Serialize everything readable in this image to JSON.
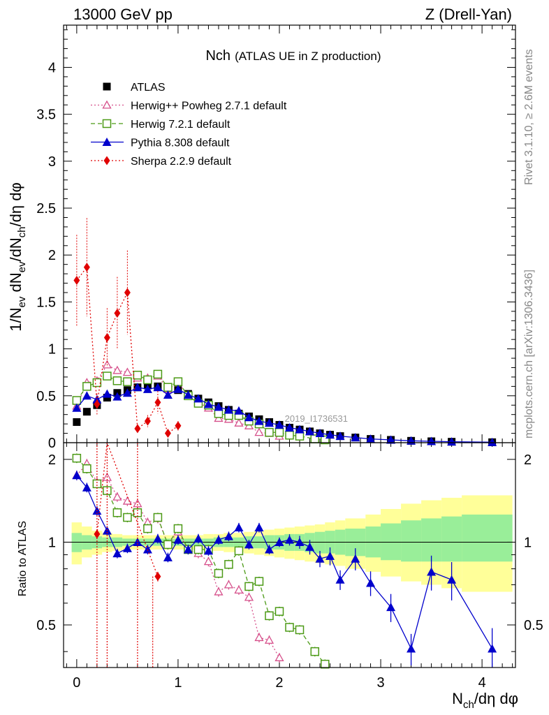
{
  "header": {
    "left": "13000 GeV pp",
    "right": "Z (Drell-Yan)"
  },
  "plot_title": {
    "main": "Nch",
    "sub": "(ATLAS UE in Z production)"
  },
  "side_labels": {
    "rivet": "Rivet 3.1.10, ≥ 2.6M events",
    "mcplots": "mcplots.cern.ch [arXiv:1306.3436]"
  },
  "watermark": "2019_I1736531",
  "axes": {
    "xlabel": {
      "base": "N",
      "sub": "ch",
      "rest": "/dη dφ"
    },
    "ylabel_top": {
      "p1": "1/N",
      "s1": "ev",
      "p2": " dN",
      "s2": "ev",
      "p3": "/dN",
      "s3": "ch",
      "p4": "/dη dφ"
    },
    "ylabel_bottom": "Ratio to ATLAS",
    "x_ticks": [
      "0",
      "1",
      "2",
      "3",
      "4"
    ],
    "y_ticks_top": [
      "0",
      "0.5",
      "1",
      "1.5",
      "2",
      "2.5",
      "3",
      "3.5",
      "4"
    ],
    "y_ticks_bottom": [
      "0.5",
      "1",
      "2"
    ]
  },
  "legend": [
    {
      "label": "ATLAS",
      "color": "#000000",
      "marker": "square-filled"
    },
    {
      "label": "Herwig++ Powheg 2.7.1 default",
      "color": "#d6508b",
      "marker": "triangle-open"
    },
    {
      "label": "Herwig 7.2.1 default",
      "color": "#4c9a16",
      "marker": "square-open"
    },
    {
      "label": "Pythia 8.308 default",
      "color": "#0000cc",
      "marker": "triangle-filled"
    },
    {
      "label": "Sherpa 2.2.9 default",
      "color": "#e00000",
      "marker": "diamond-filled"
    }
  ],
  "chart_data": {
    "type": "scatter",
    "title": "Nch (ATLAS UE in Z production)",
    "xlabel": "N_ch/dη dφ",
    "ylabel": "1/N_ev dN_ev/dN_ch/dη dφ",
    "xlim": [
      -0.13,
      4.33
    ],
    "ylim_top": [
      0,
      4.45
    ],
    "ylim_ratio": [
      0.35,
      2.3
    ],
    "ratio_scale": "log",
    "series": [
      {
        "name": "ATLAS",
        "x": [
          0,
          0.1,
          0.2,
          0.3,
          0.4,
          0.5,
          0.6,
          0.7,
          0.8,
          0.9,
          1.0,
          1.1,
          1.2,
          1.3,
          1.4,
          1.5,
          1.6,
          1.7,
          1.8,
          1.9,
          2.0,
          2.1,
          2.2,
          2.3,
          2.4,
          2.5,
          2.6,
          2.75,
          2.9,
          3.1,
          3.3,
          3.5,
          3.7,
          4.1
        ],
        "y": [
          0.22,
          0.33,
          0.4,
          0.48,
          0.53,
          0.56,
          0.59,
          0.61,
          0.6,
          0.59,
          0.56,
          0.52,
          0.47,
          0.43,
          0.39,
          0.35,
          0.31,
          0.28,
          0.25,
          0.22,
          0.19,
          0.16,
          0.14,
          0.12,
          0.1,
          0.085,
          0.07,
          0.055,
          0.04,
          0.03,
          0.02,
          0.015,
          0.01,
          0.005
        ]
      },
      {
        "name": "Herwig++ Powheg 2.7.1 default",
        "x": [
          0,
          0.1,
          0.2,
          0.3,
          0.4,
          0.5,
          0.6,
          0.7,
          0.8,
          0.9,
          1.0,
          1.1,
          1.2,
          1.3,
          1.4,
          1.5,
          1.6,
          1.7,
          1.8,
          1.9,
          2.0
        ],
        "y": [
          0.39,
          0.64,
          0.66,
          0.83,
          0.77,
          0.75,
          0.69,
          0.69,
          0.71,
          0.57,
          0.64,
          0.5,
          0.43,
          0.37,
          0.26,
          0.25,
          0.21,
          0.18,
          0.11,
          0.1,
          0.07
        ],
        "ratio": [
          1.75,
          1.93,
          1.65,
          1.72,
          1.46,
          1.41,
          1.38,
          1.18,
          1.22,
          0.98,
          1.09,
          0.94,
          0.91,
          0.85,
          0.66,
          0.7,
          0.67,
          0.63,
          0.45,
          0.44,
          0.38
        ]
      },
      {
        "name": "Herwig 7.2.1 default",
        "x": [
          0,
          0.1,
          0.2,
          0.3,
          0.4,
          0.5,
          0.6,
          0.7,
          0.8,
          0.9,
          1.0,
          1.1,
          1.2,
          1.3,
          1.4,
          1.5,
          1.6,
          1.7,
          1.8,
          1.9,
          2.0,
          2.1,
          2.2,
          2.35,
          2.45
        ],
        "y": [
          0.45,
          0.6,
          0.64,
          0.71,
          0.66,
          0.65,
          0.72,
          0.67,
          0.73,
          0.59,
          0.65,
          0.5,
          0.42,
          0.4,
          0.31,
          0.29,
          0.29,
          0.23,
          0.2,
          0.11,
          0.11,
          0.08,
          0.07,
          0.04,
          0.03
        ],
        "ratio": [
          2.02,
          1.85,
          1.63,
          1.54,
          1.28,
          1.23,
          1.28,
          1.12,
          1.23,
          0.98,
          1.12,
          0.94,
          0.94,
          0.94,
          0.77,
          0.83,
          0.93,
          0.69,
          0.72,
          0.54,
          0.56,
          0.49,
          0.48,
          0.4,
          0.36
        ]
      },
      {
        "name": "Pythia 8.308 default",
        "x": [
          0,
          0.1,
          0.2,
          0.3,
          0.4,
          0.5,
          0.6,
          0.7,
          0.8,
          0.9,
          1.0,
          1.1,
          1.2,
          1.3,
          1.4,
          1.5,
          1.6,
          1.7,
          1.8,
          1.9,
          2.0,
          2.1,
          2.2,
          2.3,
          2.4,
          2.5,
          2.6,
          2.75,
          2.9,
          3.1,
          3.3,
          3.5,
          3.7,
          4.1
        ],
        "y": [
          0.37,
          0.5,
          0.46,
          0.52,
          0.49,
          0.53,
          0.59,
          0.57,
          0.59,
          0.51,
          0.57,
          0.51,
          0.47,
          0.41,
          0.38,
          0.35,
          0.34,
          0.27,
          0.23,
          0.21,
          0.19,
          0.16,
          0.14,
          0.12,
          0.1,
          0.085,
          0.07,
          0.055,
          0.04,
          0.03,
          0.02,
          0.015,
          0.01,
          0.005
        ],
        "ratio": [
          1.75,
          1.58,
          1.3,
          1.1,
          0.91,
          0.95,
          1.0,
          0.94,
          1.03,
          0.88,
          1.02,
          0.94,
          1.03,
          0.93,
          1.02,
          1.05,
          1.13,
          0.98,
          1.13,
          0.94,
          1.0,
          1.02,
          1.0,
          0.96,
          0.87,
          0.89,
          0.73,
          0.87,
          0.71,
          0.58,
          0.41,
          0.78,
          0.73,
          0.41
        ]
      },
      {
        "name": "Sherpa 2.2.9 default",
        "x": [
          0,
          0.1,
          0.2,
          0.3,
          0.4,
          0.5,
          0.6,
          0.7,
          0.8,
          0.9,
          1.0
        ],
        "y": [
          1.73,
          1.87,
          0.41,
          1.12,
          1.38,
          1.6,
          0.15,
          0.23,
          0.43,
          0.1,
          0.18
        ],
        "ratio": [
          null,
          null,
          1.07,
          2.35,
          null,
          null,
          null,
          null,
          0.75,
          null,
          null
        ]
      }
    ],
    "uncertainty_bands": {
      "x_edges": [
        -0.05,
        0.05,
        0.15,
        0.25,
        0.35,
        0.45,
        0.55,
        0.65,
        0.75,
        0.85,
        0.95,
        1.05,
        1.15,
        1.25,
        1.35,
        1.45,
        1.55,
        1.65,
        1.75,
        1.85,
        1.95,
        2.05,
        2.15,
        2.25,
        2.35,
        2.45,
        2.55,
        2.65,
        2.85,
        3.0,
        3.2,
        3.4,
        3.6,
        3.8,
        4.3
      ],
      "yellow_lo": [
        0.83,
        0.88,
        0.9,
        0.92,
        0.93,
        0.94,
        0.94,
        0.94,
        0.94,
        0.94,
        0.94,
        0.94,
        0.94,
        0.93,
        0.93,
        0.92,
        0.92,
        0.91,
        0.9,
        0.89,
        0.88,
        0.87,
        0.86,
        0.85,
        0.84,
        0.83,
        0.82,
        0.8,
        0.78,
        0.75,
        0.72,
        0.7,
        0.68,
        0.66
      ],
      "yellow_hi": [
        1.18,
        1.14,
        1.1,
        1.08,
        1.07,
        1.06,
        1.06,
        1.06,
        1.06,
        1.06,
        1.06,
        1.06,
        1.06,
        1.07,
        1.07,
        1.08,
        1.08,
        1.09,
        1.1,
        1.11,
        1.12,
        1.13,
        1.14,
        1.15,
        1.16,
        1.18,
        1.2,
        1.22,
        1.26,
        1.32,
        1.38,
        1.42,
        1.45,
        1.48
      ],
      "green_lo": [
        0.92,
        0.94,
        0.95,
        0.96,
        0.96,
        0.97,
        0.97,
        0.97,
        0.97,
        0.97,
        0.97,
        0.97,
        0.97,
        0.97,
        0.96,
        0.96,
        0.96,
        0.95,
        0.95,
        0.94,
        0.94,
        0.93,
        0.93,
        0.92,
        0.91,
        0.91,
        0.9,
        0.89,
        0.88,
        0.86,
        0.85,
        0.85,
        0.85,
        0.85
      ],
      "green_hi": [
        1.08,
        1.06,
        1.05,
        1.04,
        1.04,
        1.03,
        1.03,
        1.03,
        1.03,
        1.03,
        1.03,
        1.03,
        1.03,
        1.03,
        1.04,
        1.04,
        1.04,
        1.05,
        1.05,
        1.06,
        1.06,
        1.07,
        1.07,
        1.08,
        1.09,
        1.1,
        1.11,
        1.12,
        1.14,
        1.17,
        1.2,
        1.22,
        1.24,
        1.26
      ]
    }
  }
}
